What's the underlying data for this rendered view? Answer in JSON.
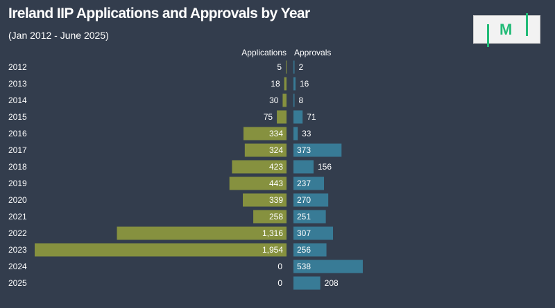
{
  "header": {
    "title": "Ireland IIP Applications and Approvals by Year",
    "subtitle": "(Jan 2012 - June 2025)",
    "logo_text": "M"
  },
  "chart_data": {
    "type": "bar",
    "orientation": "horizontal-diverging",
    "title": "Ireland IIP Applications and Approvals by Year",
    "subtitle": "(Jan 2012 - June 2025)",
    "categories": [
      "2012",
      "2013",
      "2014",
      "2015",
      "2016",
      "2017",
      "2018",
      "2019",
      "2020",
      "2021",
      "2022",
      "2023",
      "2024",
      "2025"
    ],
    "series": [
      {
        "name": "Applications",
        "color": "#86913f",
        "direction": "left",
        "values": [
          5,
          18,
          30,
          75,
          334,
          324,
          423,
          443,
          339,
          258,
          1316,
          1954,
          0,
          0
        ],
        "labels": [
          "5",
          "18",
          "30",
          "75",
          "334",
          "324",
          "423",
          "443",
          "339",
          "258",
          "1,316",
          "1,954",
          "0",
          "0"
        ]
      },
      {
        "name": "Approvals",
        "color": "#387b96",
        "direction": "right",
        "values": [
          2,
          16,
          8,
          71,
          33,
          373,
          156,
          237,
          270,
          251,
          307,
          256,
          538,
          208
        ],
        "labels": [
          "2",
          "16",
          "8",
          "71",
          "33",
          "373",
          "156",
          "237",
          "270",
          "251",
          "307",
          "256",
          "538",
          "208"
        ]
      }
    ],
    "grid": false,
    "legend": "column-headers"
  }
}
